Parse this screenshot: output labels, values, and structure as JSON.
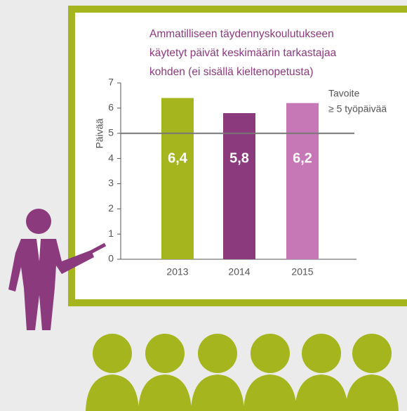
{
  "chart_data": {
    "type": "bar",
    "title": [
      "Ammatilliseen täydennyskoulutukseen",
      "käytetyt päivät keskimäärin tarkastajaa",
      "kohden (ei sisällä kieltenopetusta)"
    ],
    "y_label": "Päivää",
    "categories": [
      "2013",
      "2014",
      "2015"
    ],
    "values": [
      6.4,
      5.8,
      6.2
    ],
    "value_labels": [
      "6,4",
      "5,8",
      "6,2"
    ],
    "colors": [
      "#a5b51d",
      "#8b3a7e",
      "#c678b6"
    ],
    "target": 5,
    "target_label": [
      "Tavoite",
      "≥ 5 työpäivää"
    ],
    "ylim": [
      0,
      7
    ],
    "yticks": [
      0,
      1,
      2,
      3,
      4,
      5,
      6,
      7
    ]
  }
}
